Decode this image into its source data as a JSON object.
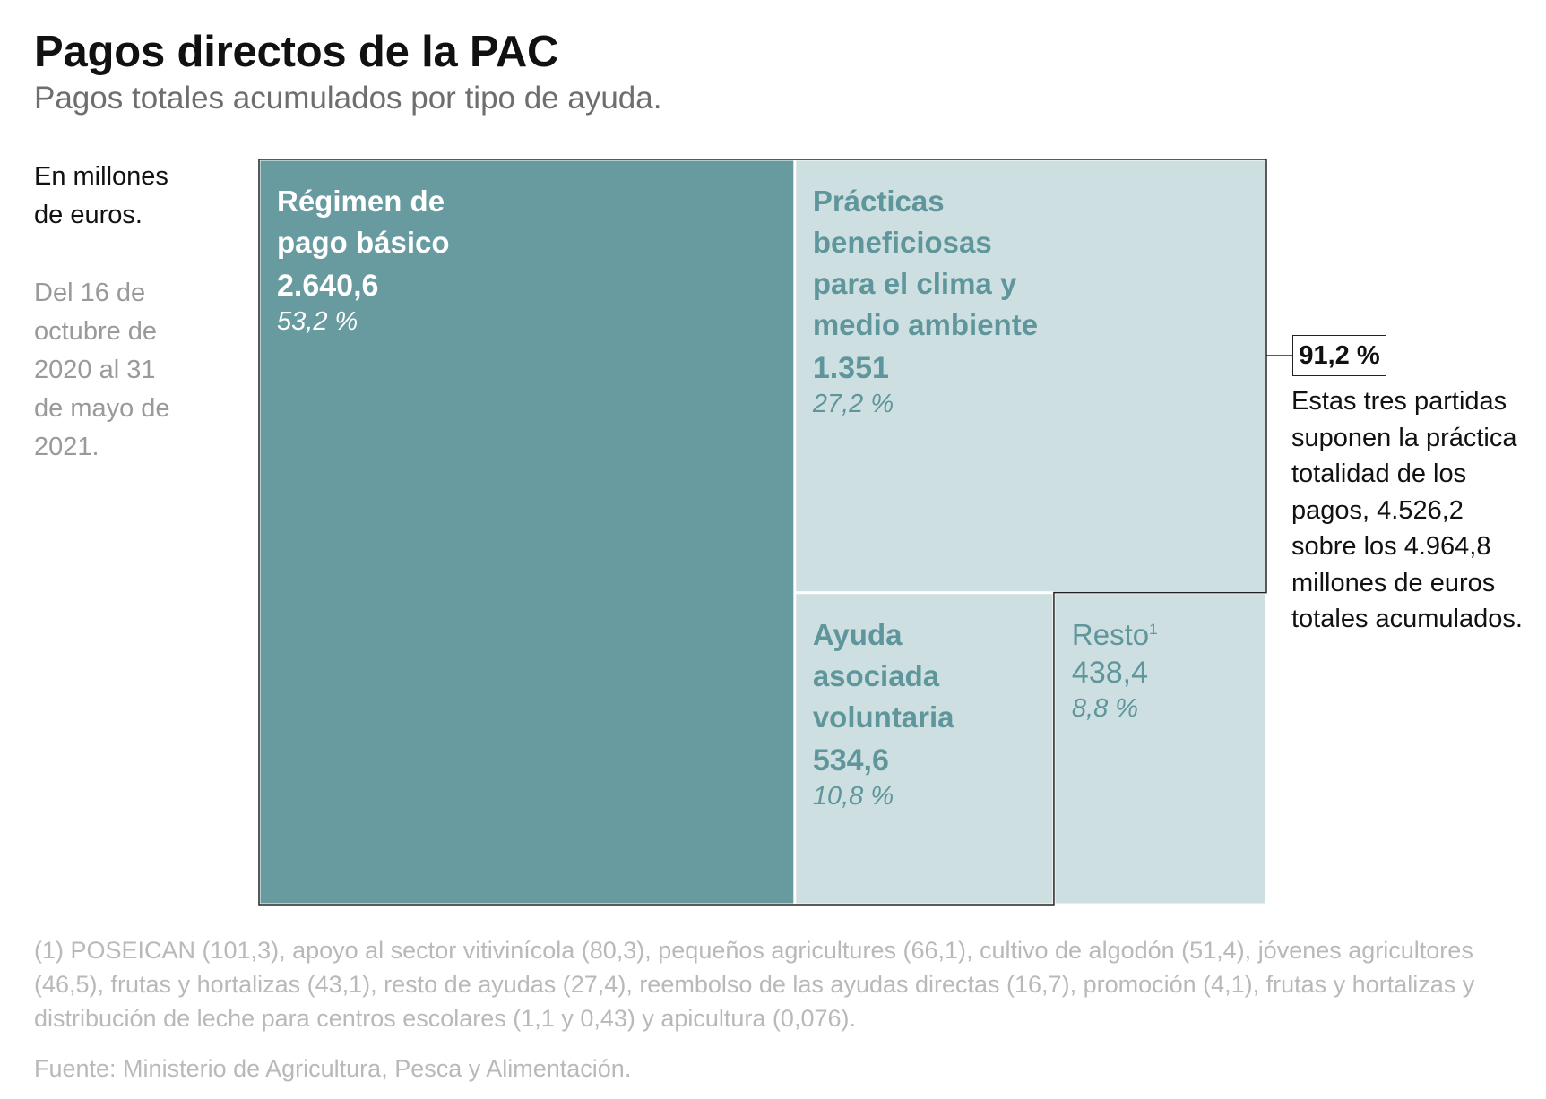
{
  "title": "Pagos directos de la PAC",
  "subtitle": "Pagos totales acumulados por tipo de ayuda.",
  "units_note": "En millones de euros.",
  "period_note": "Del 16 de octubre de 2020 al 31 de mayo de 2021.",
  "colors": {
    "dark_tile": "#679ba0",
    "light_tile": "#cddfe1",
    "light_text": "#5e969b",
    "footnote_text": "#b9b9b9"
  },
  "chart_data": {
    "type": "treemap",
    "title": "Pagos directos de la PAC",
    "unit": "millones de euros",
    "total": "4.964,8",
    "items": [
      {
        "label": "Régimen de pago básico",
        "value": 2640.6,
        "value_label": "2.640,6",
        "percent_label": "53,2 %",
        "group": "top3"
      },
      {
        "label": "Prácticas beneficiosas para el clima y medio ambiente",
        "value": 1351,
        "value_label": "1.351",
        "percent_label": "27,2 %",
        "group": "top3"
      },
      {
        "label": "Ayuda asociada voluntaria",
        "value": 534.6,
        "value_label": "534,6",
        "percent_label": "10,8 %",
        "group": "top3"
      },
      {
        "label": "Resto",
        "footnote_marker": "1",
        "value": 438.4,
        "value_label": "438,4",
        "percent_label": "8,8 %",
        "group": "other"
      }
    ]
  },
  "callout": {
    "percent": "91,2 %",
    "text": "Estas tres partidas suponen la práctica totalidad de los pagos, 4.526,2 sobre los 4.964,8 millones de euros totales acumulados."
  },
  "footnote": "(1) POSEICAN (101,3), apoyo al sector vitivinícola (80,3), pequeños agricultures (66,1), cultivo de algodón (51,4), jóvenes agricultores (46,5), frutas y hortalizas (43,1), resto de ayudas (27,4), reembolso de las ayudas directas (16,7), promoción (4,1), frutas y hortalizas y distribución de leche para centros escolares (1,1 y 0,43) y apicultura (0,076).",
  "source": "Fuente: Ministerio de Agricultura, Pesca y Alimentación."
}
